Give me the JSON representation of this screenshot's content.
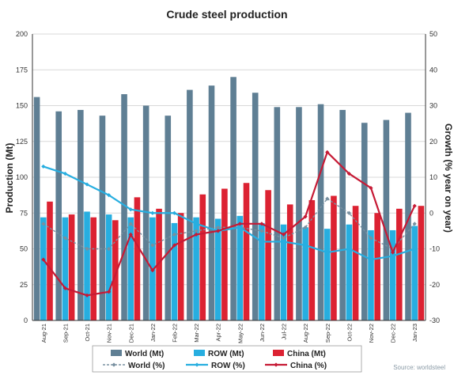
{
  "chart_data": {
    "type": "bar",
    "title": "Crude steel production",
    "ylabel": "Production (Mt)",
    "y2label": "Growth (% year on year)",
    "ylim": [
      0,
      200
    ],
    "y2lim": [
      -30,
      50
    ],
    "yticks": [
      "0",
      "25",
      "50",
      "75",
      "100",
      "125",
      "150",
      "175",
      "200"
    ],
    "y2ticks": [
      "-30",
      "-20",
      "-10",
      "0",
      "10",
      "20",
      "30",
      "40",
      "50"
    ],
    "categories": [
      "Aug-21",
      "Sep-21",
      "Oct-21",
      "Nov-21",
      "Dec-21",
      "Jan-22",
      "Feb-22",
      "Mar-22",
      "Apr-22",
      "May-22",
      "Jun-22",
      "Jul-22",
      "Aug-22",
      "Sep-22",
      "Oct-22",
      "Nov-22",
      "Dec-22",
      "Jan-23"
    ],
    "bar_series": [
      {
        "name": "World (Mt)",
        "color": "#5f7f94",
        "values": [
          156,
          146,
          147,
          143,
          158,
          150,
          143,
          161,
          164,
          170,
          159,
          149,
          149,
          151,
          147,
          138,
          140,
          145
        ]
      },
      {
        "name": "ROW (Mt)",
        "color": "#27aee0",
        "values": [
          72,
          72,
          76,
          74,
          72,
          72,
          68,
          72,
          71,
          73,
          68,
          67,
          65,
          64,
          67,
          63,
          63,
          66
        ]
      },
      {
        "name": "China (Mt)",
        "color": "#dc2232",
        "values": [
          83,
          74,
          72,
          70,
          86,
          78,
          75,
          88,
          92,
          96,
          91,
          81,
          84,
          87,
          80,
          75,
          78,
          80
        ]
      }
    ],
    "line_series": [
      {
        "name": "World (%)",
        "color": "#7890a0",
        "values": [
          -3,
          -7,
          -10,
          -10,
          -3,
          -9,
          -6,
          -5,
          -4,
          -4,
          -5,
          -7,
          -4,
          4,
          0,
          -7,
          -10,
          -3
        ]
      },
      {
        "name": "ROW (%)",
        "color": "#27aee0",
        "values": [
          13,
          11,
          8,
          5,
          1,
          0,
          0,
          -3,
          -5,
          -4,
          -8,
          -8,
          -9,
          -11,
          -10,
          -13,
          -12,
          -10
        ]
      },
      {
        "name": "China (%)",
        "color": "#c61a35",
        "values": [
          -13,
          -21,
          -23,
          -22,
          -6,
          -16,
          -9,
          -6,
          -5,
          -3,
          -3,
          -6,
          -1,
          17,
          11,
          7,
          -11,
          2
        ]
      }
    ],
    "source": "Source: worldsteel",
    "grid": true
  }
}
